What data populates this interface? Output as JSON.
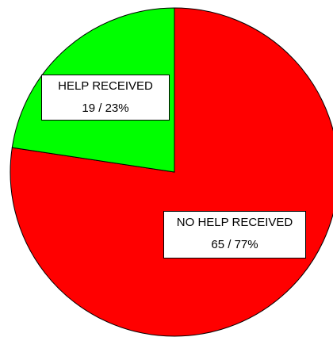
{
  "chart_data": {
    "type": "pie",
    "slices": [
      {
        "label": "NO HELP RECEIVED",
        "value": 65,
        "percent": "77%",
        "value_text": "65 / 77%",
        "color": "#ff0000"
      },
      {
        "label": "HELP RECEIVED",
        "value": 19,
        "percent": "23%",
        "value_text": "19 / 23%",
        "color": "#00ff00"
      }
    ],
    "start_angle_deg": 0,
    "direction": "clockwise"
  }
}
